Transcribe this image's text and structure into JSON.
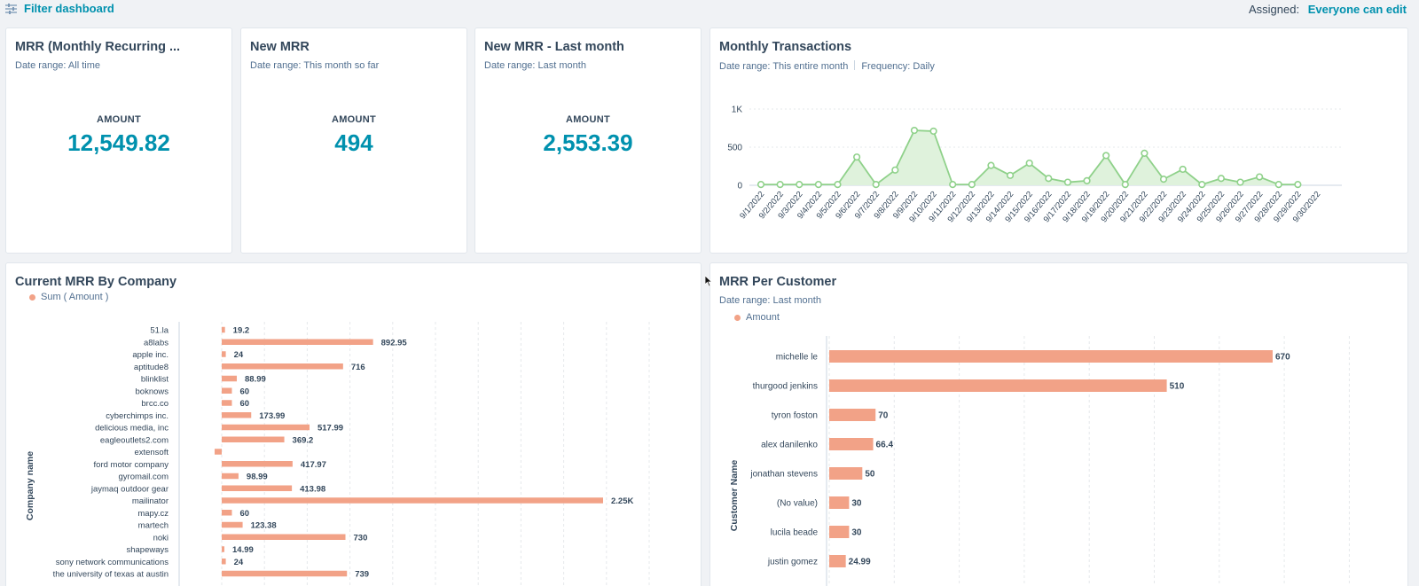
{
  "topbar": {
    "filter_label": "Filter dashboard",
    "assigned_label": "Assigned:",
    "assigned_value": "Everyone can edit"
  },
  "kpi_cards": [
    {
      "title": "MRR (Monthly Recurring ...",
      "date_range": "Date range:  All time",
      "label": "AMOUNT",
      "value": "12,549.82"
    },
    {
      "title": "New MRR",
      "date_range": "Date range:  This month so far",
      "label": "AMOUNT",
      "value": "494"
    },
    {
      "title": "New MRR - Last month",
      "date_range": "Date range:  Last month",
      "label": "AMOUNT",
      "value": "2,553.39"
    }
  ],
  "transactions_card": {
    "title": "Monthly Transactions",
    "date_range": "Date range:  This entire month",
    "frequency": "Frequency:  Daily"
  },
  "company_card": {
    "title": "Current MRR By Company",
    "legend": "Sum ( Amount )",
    "axis_label": "Company name"
  },
  "customer_card": {
    "title": "MRR Per Customer",
    "date_range": "Date range:  Last month",
    "legend": "Amount",
    "axis_label": "Customer Name"
  },
  "colors": {
    "accent": "#0091ae",
    "bar": "#f2a287",
    "line": "#8fd18a",
    "area": "#dff2dc"
  },
  "chart_data": [
    {
      "type": "area",
      "x": [
        "9/1/2022",
        "9/2/2022",
        "9/3/2022",
        "9/4/2022",
        "9/5/2022",
        "9/6/2022",
        "9/7/2022",
        "9/8/2022",
        "9/9/2022",
        "9/10/2022",
        "9/11/2022",
        "9/12/2022",
        "9/13/2022",
        "9/14/2022",
        "9/15/2022",
        "9/16/2022",
        "9/17/2022",
        "9/18/2022",
        "9/19/2022",
        "9/20/2022",
        "9/21/2022",
        "9/22/2022",
        "9/23/2022",
        "9/24/2022",
        "9/25/2022",
        "9/26/2022",
        "9/27/2022",
        "9/28/2022",
        "9/29/2022",
        "9/30/2022"
      ],
      "values": [
        10,
        10,
        10,
        10,
        10,
        370,
        10,
        200,
        720,
        710,
        10,
        10,
        260,
        130,
        290,
        90,
        40,
        60,
        390,
        10,
        420,
        80,
        210,
        10,
        90,
        40,
        110,
        10,
        10,
        null
      ],
      "yticks": [
        "0",
        "500",
        "1K"
      ],
      "ylim": [
        0,
        1000
      ],
      "grid": true
    },
    {
      "type": "bar",
      "orientation": "horizontal",
      "categories": [
        "51.la",
        "a8labs",
        "apple inc.",
        "aptitude8",
        "blinklist",
        "boknows",
        "brcc.co",
        "cyberchimps inc.",
        "delicious media, inc",
        "eagleoutlets2.com",
        "extensoft",
        "ford motor company",
        "gyromail.com",
        "jaymaq outdoor gear",
        "mailinator",
        "mapy.cz",
        "martech",
        "noki",
        "shapeways",
        "sony network communications",
        "the university of texas at austin"
      ],
      "values": [
        19.2,
        892.95,
        24,
        716,
        88.99,
        60,
        60,
        173.99,
        517.99,
        369.2,
        null,
        417.97,
        98.99,
        413.98,
        2250,
        60,
        123.38,
        730,
        14.99,
        24,
        739
      ],
      "labels": [
        "19.2",
        "892.95",
        "24",
        "716",
        "88.99",
        "60",
        "60",
        "173.99",
        "517.99",
        "369.2",
        "",
        "417.97",
        "98.99",
        "413.98",
        "2.25K",
        "60",
        "123.38",
        "730",
        "14.99",
        "24",
        "739"
      ],
      "ylabel": "Company name",
      "grid": true
    },
    {
      "type": "bar",
      "orientation": "horizontal",
      "categories": [
        "michelle le",
        "thurgood jenkins",
        "tyron foston",
        "alex danilenko",
        "jonathan stevens",
        "(No value)",
        "lucila beade",
        "justin gomez"
      ],
      "values": [
        670,
        510,
        70,
        66.4,
        50,
        30,
        30,
        24.99
      ],
      "labels": [
        "670",
        "510",
        "70",
        "66.4",
        "50",
        "30",
        "30",
        "24.99"
      ],
      "ylabel": "Customer Name",
      "grid": true
    }
  ]
}
